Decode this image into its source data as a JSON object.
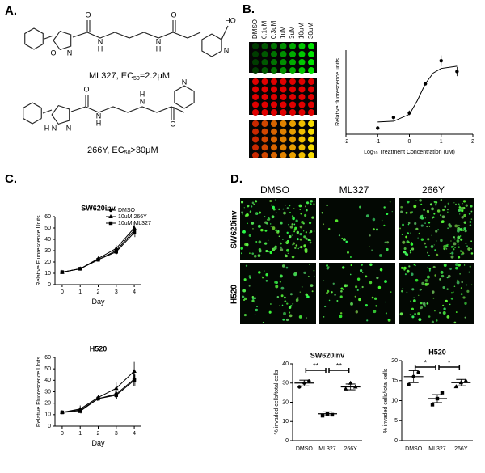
{
  "panels": {
    "a": "A.",
    "b": "B.",
    "c": "C.",
    "d": "D."
  },
  "structures": [
    {
      "atoms": [
        "O",
        "N",
        "O",
        "N",
        "H",
        "N",
        "H",
        "O",
        "HO",
        "N"
      ],
      "caption": "ML327, EC",
      "caption_sub": "50",
      "caption_end": "=2.2μM"
    },
    {
      "atoms": [
        "H",
        "N",
        "N",
        "O",
        "N",
        "H",
        "N",
        "H",
        "O",
        "N"
      ],
      "caption": "266Y, EC",
      "caption_sub": "50",
      "caption_end": ">30μM"
    }
  ],
  "plate": {
    "columns": [
      "DMSO",
      "0.1uM",
      "0.3uM",
      "1uM",
      "3uM",
      "10uM",
      "30uM"
    ]
  },
  "microscopy": {
    "columns": [
      "DMSO",
      "ML327",
      "266Y"
    ],
    "rows": [
      "SW620inv",
      "H520"
    ]
  },
  "chart_data": [
    {
      "type": "scatter",
      "y_label": "Relative fluorescence units",
      "x_label": "Log",
      "x_label_sub": "10",
      "x_label_end": "Treatment Concentration (uM)",
      "x": [
        -1,
        -0.5,
        0,
        0.5,
        1,
        1.5
      ],
      "values": [
        0.4,
        1.1,
        1.4,
        3.3,
        4.8,
        4.1
      ],
      "errors": [
        0,
        0.1,
        0.15,
        0.1,
        0.35,
        0.3
      ],
      "fit": {
        "x": [
          -1,
          -0.5,
          0,
          0.25,
          0.5,
          0.75,
          1,
          1.5
        ],
        "y": [
          0.8,
          0.85,
          1.3,
          2.2,
          3.3,
          4.0,
          4.3,
          4.45
        ]
      },
      "xlim": [
        -2,
        2
      ],
      "xticks": [
        -2,
        -1,
        0,
        1,
        2
      ],
      "ylim": [
        0,
        5.5
      ],
      "color": "#000000"
    },
    {
      "type": "line",
      "title": "SW620inv",
      "x_label": "Day",
      "y_label": "Relative Fluorescence Units",
      "legend": "upper right",
      "x": [
        0,
        1,
        2,
        3,
        4
      ],
      "xlim": [
        -0.4,
        4.4
      ],
      "xticks": [
        0,
        1,
        2,
        3,
        4
      ],
      "ylim": [
        0,
        60
      ],
      "yticks": [
        0,
        10,
        20,
        30,
        40,
        50,
        60
      ],
      "series": [
        {
          "name": "DMSO",
          "color": "#000000",
          "marker": "circle",
          "values": [
            11,
            14,
            22,
            30,
            48
          ],
          "errors": [
            0.5,
            1,
            1.5,
            2,
            4
          ]
        },
        {
          "name": "10uM 266Y",
          "color": "#000000",
          "marker": "triangle",
          "values": [
            11,
            14,
            23,
            32,
            50
          ],
          "errors": [
            0.5,
            1,
            1.5,
            3,
            5
          ]
        },
        {
          "name": "10uM ML327",
          "color": "#000000",
          "marker": "square",
          "values": [
            11,
            14,
            22,
            29,
            46
          ],
          "errors": [
            0.5,
            1,
            1.5,
            2,
            4
          ]
        }
      ]
    },
    {
      "type": "line",
      "title": "H520",
      "x_label": "Day",
      "y_label": "Relative Fluorescence Units",
      "x": [
        0,
        1,
        2,
        3,
        4
      ],
      "xlim": [
        -0.4,
        4.4
      ],
      "xticks": [
        0,
        1,
        2,
        3,
        4
      ],
      "ylim": [
        0,
        60
      ],
      "yticks": [
        0,
        10,
        20,
        30,
        40,
        50,
        60
      ],
      "series": [
        {
          "name": "DMSO",
          "color": "#000000",
          "marker": "circle",
          "values": [
            12,
            14,
            24,
            28,
            41
          ],
          "errors": [
            0.5,
            2,
            2,
            3,
            6
          ]
        },
        {
          "name": "10uM 266Y",
          "color": "#000000",
          "marker": "triangle",
          "values": [
            12,
            15,
            25,
            33,
            48
          ],
          "errors": [
            0.5,
            3,
            2,
            5,
            8
          ]
        },
        {
          "name": "10uM ML327",
          "color": "#000000",
          "marker": "square",
          "values": [
            12,
            13,
            24,
            27,
            40
          ],
          "errors": [
            0.5,
            2,
            2,
            3,
            5
          ]
        }
      ]
    },
    {
      "type": "dotplot",
      "title": "SW620inv",
      "y_label": "% invaded cells/total cells",
      "categories": [
        "DMSO",
        "ML327",
        "266Y"
      ],
      "points": [
        [
          28,
          30,
          31
        ],
        [
          13,
          14,
          13.5
        ],
        [
          27,
          30,
          28
        ]
      ],
      "means": [
        30,
        14,
        28
      ],
      "errors": [
        1.5,
        1,
        1.5
      ],
      "annotations": [
        "**",
        "**"
      ],
      "ylim": [
        0,
        40
      ],
      "yticks": [
        0,
        10,
        20,
        30,
        40
      ],
      "color": "#000000"
    },
    {
      "type": "dotplot",
      "title": "H520",
      "y_label": "% invaded cells/total cells",
      "categories": [
        "DMSO",
        "ML327",
        "266Y"
      ],
      "points": [
        [
          14,
          16,
          17
        ],
        [
          9,
          10.5,
          12
        ],
        [
          13.5,
          14.5,
          15
        ]
      ],
      "means": [
        16,
        10.5,
        14.5
      ],
      "errors": [
        1.5,
        1,
        0.8
      ],
      "annotations": [
        "*",
        "*"
      ],
      "ylim": [
        0,
        20
      ],
      "yticks": [
        0,
        5,
        10,
        15,
        20
      ],
      "color": "#000000"
    }
  ]
}
